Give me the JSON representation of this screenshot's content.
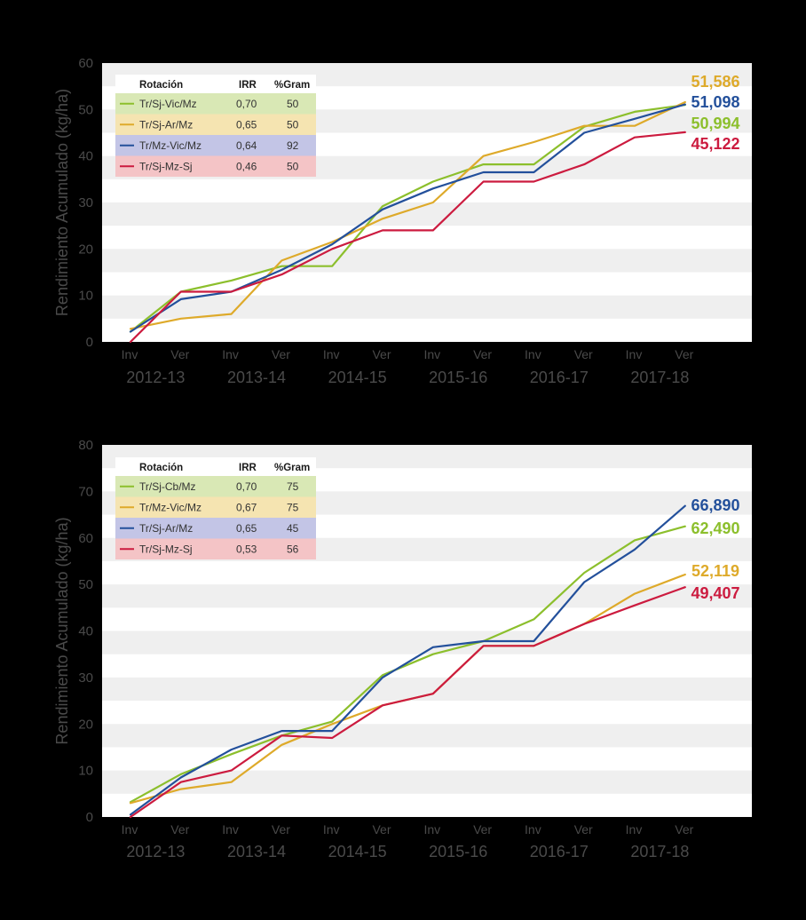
{
  "colors": {
    "green": "#8cbf2c",
    "yellow": "#deaa2a",
    "blue": "#23509b",
    "red": "#cc1b3f"
  },
  "chart_data": [
    {
      "type": "line",
      "ylabel": "Rendimiento Acumulado (kg/ha)",
      "ylim": [
        0,
        60
      ],
      "yticks": [
        "0",
        "10",
        "20",
        "30",
        "40",
        "50",
        "60"
      ],
      "x": [
        "Inv",
        "Ver",
        "Inv",
        "Ver",
        "Inv",
        "Ver",
        "Inv",
        "Ver",
        "Inv",
        "Ver",
        "Inv",
        "Ver"
      ],
      "seasons": [
        "2012-13",
        "2013-14",
        "2014-15",
        "2015-16",
        "2016-17",
        "2017-18"
      ],
      "legend": {
        "headers": [
          "Rotación",
          "IRR",
          "%Gram"
        ],
        "rows": [
          {
            "name": "Tr/Sj-Vic/Mz",
            "irr": "0,70",
            "gram": "50",
            "color": "green"
          },
          {
            "name": "Tr/Sj-Ar/Mz",
            "irr": "0,65",
            "gram": "50",
            "color": "yellow"
          },
          {
            "name": "Tr/Mz-Vic/Mz",
            "irr": "0,64",
            "gram": "92",
            "color": "blue"
          },
          {
            "name": "Tr/Sj-Mz-Sj",
            "irr": "0,46",
            "gram": "50",
            "color": "red"
          }
        ]
      },
      "series": [
        {
          "name": "Tr/Sj-Vic/Mz",
          "color": "green",
          "values": [
            2.2,
            10.8,
            13.2,
            16.3,
            16.3,
            29.2,
            34.5,
            38.2,
            38.2,
            46.3,
            49.5,
            50.994
          ]
        },
        {
          "name": "Tr/Sj-Ar/Mz",
          "color": "yellow",
          "values": [
            2.8,
            5.0,
            6.0,
            17.5,
            21.5,
            26.5,
            30.0,
            40.0,
            43.0,
            46.5,
            46.5,
            51.586
          ]
        },
        {
          "name": "Tr/Mz-Vic/Mz",
          "color": "blue",
          "values": [
            2.2,
            9.2,
            10.8,
            15.5,
            21.0,
            28.5,
            33.0,
            36.5,
            36.5,
            45.0,
            48.0,
            51.098
          ]
        },
        {
          "name": "Tr/Sj-Mz-Sj",
          "color": "red",
          "values": [
            0,
            10.8,
            10.8,
            14.5,
            20.0,
            24.0,
            24.0,
            34.5,
            34.5,
            38.2,
            44.0,
            45.122
          ]
        }
      ],
      "end_labels": [
        {
          "text": "51,586",
          "color": "yellow"
        },
        {
          "text": "51,098",
          "color": "blue"
        },
        {
          "text": "50,994",
          "color": "green"
        },
        {
          "text": "45,122",
          "color": "red"
        }
      ]
    },
    {
      "type": "line",
      "ylabel": "Rendimiento Acumulado (kg/ha)",
      "ylim": [
        0,
        80
      ],
      "yticks": [
        "0",
        "10",
        "20",
        "30",
        "40",
        "50",
        "60",
        "70",
        "80"
      ],
      "x": [
        "Inv",
        "Ver",
        "Inv",
        "Ver",
        "Inv",
        "Ver",
        "Inv",
        "Ver",
        "Inv",
        "Ver",
        "Inv",
        "Ver"
      ],
      "seasons": [
        "2012-13",
        "2013-14",
        "2014-15",
        "2015-16",
        "2016-17",
        "2017-18"
      ],
      "legend": {
        "headers": [
          "Rotación",
          "IRR",
          "%Gram"
        ],
        "rows": [
          {
            "name": "Tr/Sj-Cb/Mz",
            "irr": "0,70",
            "gram": "75",
            "color": "green"
          },
          {
            "name": "Tr/Mz-Vic/Mz",
            "irr": "0,67",
            "gram": "75",
            "color": "yellow"
          },
          {
            "name": "Tr/Sj-Ar/Mz",
            "irr": "0,65",
            "gram": "45",
            "color": "blue"
          },
          {
            "name": "Tr/Sj-Mz-Sj",
            "irr": "0,53",
            "gram": "56",
            "color": "red"
          }
        ]
      },
      "series": [
        {
          "name": "Tr/Sj-Cb/Mz",
          "color": "green",
          "values": [
            3.2,
            9.2,
            13.5,
            17.5,
            20.5,
            30.5,
            35.0,
            37.8,
            42.5,
            52.5,
            59.5,
            62.49
          ]
        },
        {
          "name": "Tr/Mz-Vic/Mz",
          "color": "yellow",
          "values": [
            3.0,
            6.0,
            7.5,
            15.5,
            20.0,
            24.0,
            26.5,
            36.8,
            36.8,
            41.5,
            48.0,
            52.119
          ]
        },
        {
          "name": "Tr/Sj-Ar/Mz",
          "color": "blue",
          "values": [
            0.5,
            8.5,
            14.5,
            18.5,
            18.5,
            30.0,
            36.5,
            37.8,
            37.8,
            50.5,
            57.5,
            66.89
          ]
        },
        {
          "name": "Tr/Sj-Mz-Sj",
          "color": "red",
          "values": [
            0,
            7.5,
            10.0,
            17.5,
            17.0,
            24.0,
            26.5,
            36.8,
            36.8,
            41.5,
            45.5,
            49.407
          ]
        }
      ],
      "end_labels": [
        {
          "text": "66,890",
          "color": "blue"
        },
        {
          "text": "62,490",
          "color": "green"
        },
        {
          "text": "52,119",
          "color": "yellow"
        },
        {
          "text": "49,407",
          "color": "red"
        }
      ]
    }
  ]
}
